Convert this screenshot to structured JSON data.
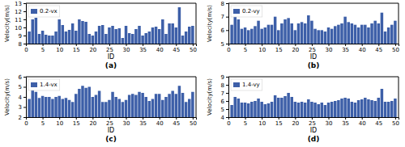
{
  "chart_data": [
    {
      "type": "bar",
      "title": "(a)",
      "xlabel": "ID",
      "ylabel": "Velocity(m/s)",
      "x": [
        1,
        2,
        3,
        4,
        5,
        6,
        7,
        8,
        9,
        10,
        11,
        12,
        13,
        14,
        15,
        16,
        17,
        18,
        19,
        20,
        21,
        22,
        23,
        24,
        25,
        26,
        27,
        28,
        29,
        30,
        31,
        32,
        33,
        34,
        35,
        36,
        37,
        38,
        39,
        40,
        41,
        42,
        43,
        44,
        45,
        46,
        47,
        48,
        49,
        50
      ],
      "series": [
        {
          "name": "0.2-vx",
          "color": "#3d5fa8",
          "values": [
            9.5,
            11.0,
            11.2,
            9.2,
            9.6,
            9.1,
            9.0,
            9.0,
            9.5,
            11.0,
            10.3,
            9.5,
            9.7,
            10.5,
            9.6,
            11.0,
            10.8,
            10.7,
            9.2,
            9.0,
            9.5,
            10.2,
            10.3,
            9.2,
            10.0,
            10.2,
            9.8,
            9.9,
            8.7,
            10.2,
            9.3,
            9.2,
            9.8,
            10.2,
            9.0,
            9.3,
            9.5,
            10.0,
            10.1,
            9.8,
            11.0,
            9.2,
            10.5,
            10.5,
            10.0,
            12.5,
            9.0,
            9.5,
            10.1,
            10.2
          ]
        }
      ],
      "xlim": [
        0,
        51
      ],
      "xticks": [
        0,
        5,
        10,
        15,
        20,
        25,
        30,
        35,
        40,
        45,
        50
      ],
      "ylim": [
        8,
        13
      ],
      "yticks": [
        8,
        9,
        10,
        11,
        12,
        13
      ],
      "legend": "top-left",
      "grid": false
    },
    {
      "type": "bar",
      "title": "(b)",
      "xlabel": "ID",
      "ylabel": "Velocity(m/s)",
      "x": [
        1,
        2,
        3,
        4,
        5,
        6,
        7,
        8,
        9,
        10,
        11,
        12,
        13,
        14,
        15,
        16,
        17,
        18,
        19,
        20,
        21,
        22,
        23,
        24,
        25,
        26,
        27,
        28,
        29,
        30,
        31,
        32,
        33,
        34,
        35,
        36,
        37,
        38,
        39,
        40,
        41,
        42,
        43,
        44,
        45,
        46,
        47,
        48,
        49,
        50
      ],
      "series": [
        {
          "name": "0.2-vy",
          "color": "#3d5fa8",
          "values": [
            6.4,
            7.0,
            6.8,
            6.1,
            6.2,
            6.0,
            6.1,
            6.3,
            6.7,
            6.1,
            6.2,
            6.4,
            6.4,
            7.0,
            6.0,
            6.5,
            6.8,
            6.9,
            6.5,
            6.0,
            6.5,
            6.6,
            6.5,
            7.1,
            6.7,
            6.1,
            6.0,
            6.0,
            5.9,
            6.2,
            6.1,
            6.3,
            6.4,
            6.5,
            7.0,
            6.6,
            6.5,
            6.4,
            6.2,
            6.4,
            6.4,
            6.2,
            6.5,
            6.7,
            6.5,
            7.3,
            5.9,
            6.2,
            6.4,
            6.7
          ]
        }
      ],
      "xlim": [
        0,
        51
      ],
      "xticks": [
        0,
        5,
        10,
        15,
        20,
        25,
        30,
        35,
        40,
        45,
        50
      ],
      "ylim": [
        5,
        8
      ],
      "yticks": [
        5,
        6,
        7,
        8
      ],
      "legend": "top-left",
      "grid": false
    },
    {
      "type": "bar",
      "title": "(c)",
      "xlabel": "ID",
      "ylabel": "Velocity(m/s)",
      "x": [
        1,
        2,
        3,
        4,
        5,
        6,
        7,
        8,
        9,
        10,
        11,
        12,
        13,
        14,
        15,
        16,
        17,
        18,
        19,
        20,
        21,
        22,
        23,
        24,
        25,
        26,
        27,
        28,
        29,
        30,
        31,
        32,
        33,
        34,
        35,
        36,
        37,
        38,
        39,
        40,
        41,
        42,
        43,
        44,
        45,
        46,
        47,
        48,
        49,
        50
      ],
      "series": [
        {
          "name": "1.4-vx",
          "color": "#3d5fa8",
          "values": [
            3.8,
            4.7,
            4.5,
            3.9,
            4.1,
            4.0,
            4.0,
            3.8,
            4.0,
            4.1,
            3.8,
            3.9,
            3.7,
            3.5,
            4.3,
            4.8,
            5.1,
            4.9,
            5.0,
            4.0,
            4.2,
            4.6,
            3.5,
            3.5,
            3.7,
            4.5,
            4.0,
            3.8,
            3.5,
            3.7,
            4.2,
            4.3,
            4.2,
            4.5,
            4.4,
            4.0,
            3.6,
            3.8,
            4.3,
            4.3,
            3.7,
            4.0,
            4.3,
            4.6,
            4.3,
            5.1,
            4.4,
            3.5,
            3.8,
            4.5
          ]
        }
      ],
      "xlim": [
        0,
        51
      ],
      "xticks": [
        0,
        5,
        10,
        15,
        20,
        25,
        30,
        35,
        40,
        45,
        50
      ],
      "ylim": [
        2,
        6
      ],
      "yticks": [
        2,
        3,
        4,
        5,
        6
      ],
      "legend": "top-left",
      "grid": false
    },
    {
      "type": "bar",
      "title": "(d)",
      "xlabel": "ID",
      "ylabel": "Velocity(m/s)",
      "x": [
        1,
        2,
        3,
        4,
        5,
        6,
        7,
        8,
        9,
        10,
        11,
        12,
        13,
        14,
        15,
        16,
        17,
        18,
        19,
        20,
        21,
        22,
        23,
        24,
        25,
        26,
        27,
        28,
        29,
        30,
        31,
        32,
        33,
        34,
        35,
        36,
        37,
        38,
        39,
        40,
        41,
        42,
        43,
        44,
        45,
        46,
        47,
        48,
        49,
        50
      ],
      "series": [
        {
          "name": "1.4-vy",
          "color": "#3d5fa8",
          "values": [
            5.5,
            6.5,
            6.3,
            5.8,
            5.8,
            5.7,
            5.9,
            6.0,
            6.3,
            5.9,
            5.6,
            5.7,
            5.9,
            6.7,
            6.4,
            6.4,
            6.6,
            7.0,
            6.5,
            5.9,
            5.8,
            5.9,
            5.8,
            6.2,
            5.9,
            5.8,
            5.6,
            5.8,
            5.5,
            5.8,
            5.9,
            6.0,
            6.1,
            6.3,
            6.4,
            6.3,
            5.9,
            5.8,
            6.1,
            6.2,
            6.4,
            6.2,
            6.1,
            6.0,
            6.4,
            7.5,
            5.9,
            5.9,
            6.0,
            6.3
          ]
        }
      ],
      "xlim": [
        0,
        51
      ],
      "xticks": [
        0,
        5,
        10,
        15,
        20,
        25,
        30,
        35,
        40,
        45,
        50
      ],
      "ylim": [
        4,
        9
      ],
      "yticks": [
        4,
        5,
        6,
        7,
        8,
        9
      ],
      "legend": "top-left",
      "grid": false
    }
  ]
}
